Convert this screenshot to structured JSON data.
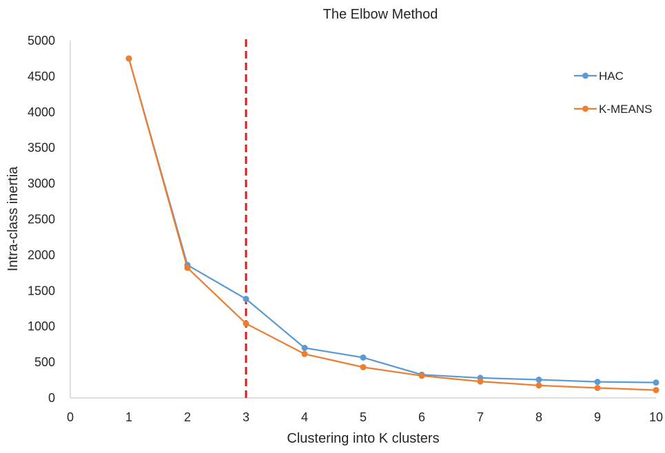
{
  "chart_data": {
    "type": "line",
    "title": "The Elbow Method",
    "xlabel": "Clustering into K clusters",
    "ylabel": "Intra-class inertia",
    "xlim": [
      0,
      10
    ],
    "ylim": [
      0,
      5000
    ],
    "xticks": [
      0,
      1,
      2,
      3,
      4,
      5,
      6,
      7,
      8,
      9,
      10
    ],
    "yticks": [
      0,
      500,
      1000,
      1500,
      2000,
      2500,
      3000,
      3500,
      4000,
      4500,
      5000
    ],
    "x": [
      1,
      2,
      3,
      4,
      5,
      6,
      7,
      8,
      9,
      10
    ],
    "series": [
      {
        "name": "HAC",
        "color": "#5B9BD5",
        "values": [
          4750,
          1860,
          1385,
          700,
          565,
          325,
          280,
          255,
          225,
          215
        ]
      },
      {
        "name": "K-MEANS",
        "color": "#ED7D31",
        "values": [
          4750,
          1820,
          1040,
          615,
          430,
          310,
          230,
          175,
          140,
          110
        ]
      }
    ],
    "reference_line": {
      "x": 3,
      "color": "#E3181B",
      "style": "dashed"
    },
    "legend_position": "top-right",
    "grid": false
  }
}
